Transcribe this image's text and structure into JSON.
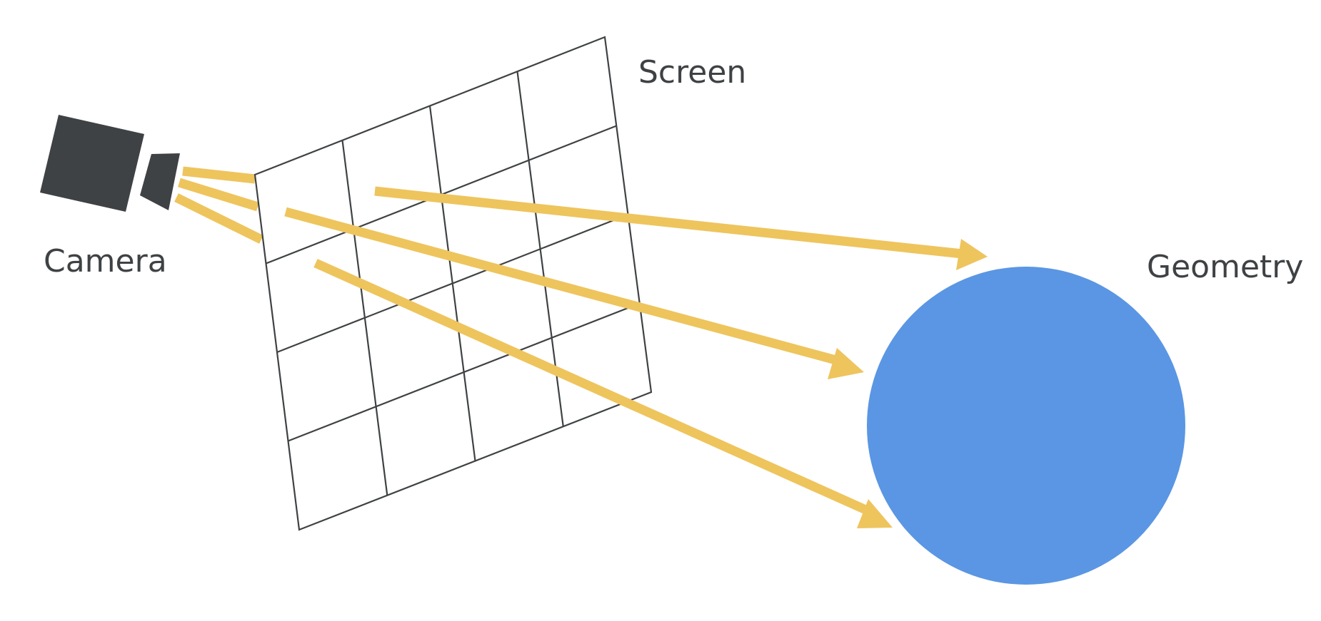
{
  "labels": {
    "camera": "Camera",
    "screen": "Screen",
    "geometry": "Geometry"
  },
  "colors": {
    "background": "#ffffff",
    "camera": "#3f4244",
    "grid_line": "#3f4244",
    "ray": "#eec45d",
    "geometry": "#5a96e3"
  },
  "diagram": {
    "subject": "ray casting from camera through screen grid to geometry",
    "grid_rows": 4,
    "grid_cols": 4,
    "ray_count": 3
  }
}
